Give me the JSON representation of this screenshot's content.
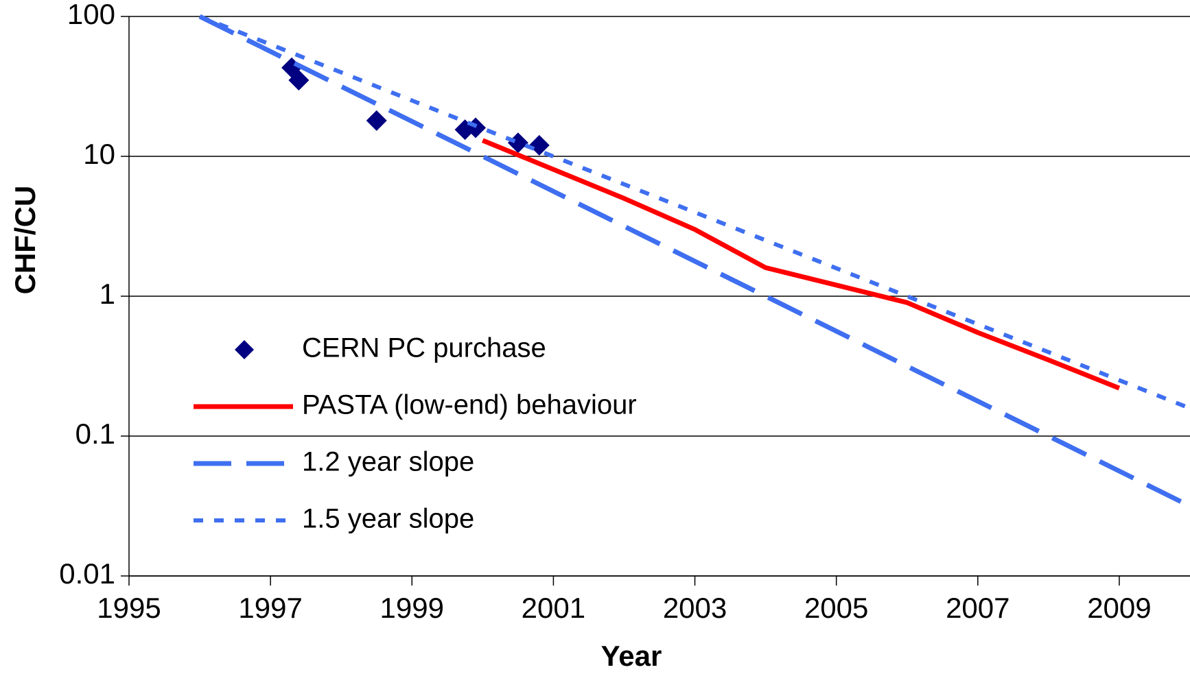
{
  "chart_data": {
    "type": "line",
    "x_label": "Year",
    "y_label": "CHF/CU",
    "xlim": [
      1995,
      2010
    ],
    "xticks": [
      1995,
      1997,
      1999,
      2001,
      2003,
      2005,
      2007,
      2009
    ],
    "ylim": [
      0.01,
      100
    ],
    "yticks": [
      0.01,
      0.1,
      1,
      10,
      100
    ],
    "y_scale": "log",
    "grid": true,
    "legend_position": "center left",
    "series": [
      {
        "name": "CERN PC purchase",
        "color": "#000080",
        "style": "marker",
        "x": [
          1997.3,
          1997.4,
          1998.5,
          1999.75,
          1999.9,
          2000.5,
          2000.8
        ],
        "values": [
          43,
          35,
          18,
          15.5,
          16,
          12.5,
          12
        ]
      },
      {
        "name": "PASTA (low-end) behaviour",
        "color": "#ff0000",
        "style": "solid",
        "x": [
          2000,
          2002,
          2003,
          2004,
          2006,
          2007,
          2008,
          2009
        ],
        "values": [
          13,
          5,
          3,
          1.6,
          0.9,
          0.55,
          0.35,
          0.22
        ]
      },
      {
        "name": "1.2 year slope",
        "color": "#3f6ff0",
        "style": "dashed",
        "x": [
          1996,
          1998,
          2000,
          2002,
          2004,
          2006,
          2008,
          2010
        ],
        "values": [
          100,
          31.6,
          10,
          3.16,
          1,
          0.316,
          0.1,
          0.0316
        ]
      },
      {
        "name": "1.5 year slope",
        "color": "#3f6ff0",
        "style": "dotted",
        "x": [
          1996,
          1998,
          2000,
          2002,
          2004,
          2006,
          2008,
          2010
        ],
        "values": [
          100,
          39.8,
          15.8,
          6.31,
          2.51,
          1,
          0.398,
          0.158
        ]
      }
    ]
  }
}
